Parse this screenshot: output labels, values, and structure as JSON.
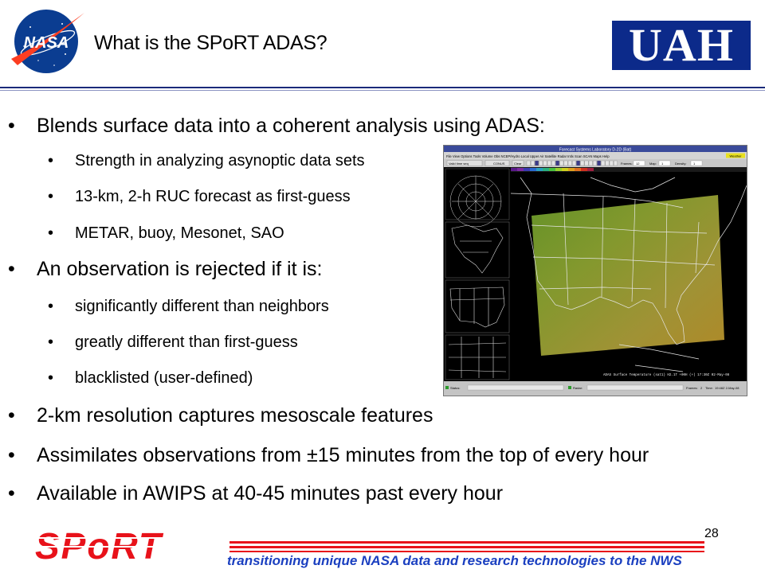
{
  "header": {
    "title": "What is the SPoRT ADAS?",
    "nasa_logo_text": "NASA",
    "uah_logo_text": "UAH"
  },
  "bullets": [
    {
      "level": 1,
      "text": "Blends surface data into a coherent analysis using ADAS:"
    },
    {
      "level": 2,
      "text": "Strength in analyzing asynoptic data sets"
    },
    {
      "level": 2,
      "text": "13-km, 2-h RUC forecast as first-guess"
    },
    {
      "level": 2,
      "text": "METAR, buoy, Mesonet, SAO"
    },
    {
      "level": 1,
      "text": "An observation is rejected if it is:"
    },
    {
      "level": 2,
      "text": "significantly different than neighbors"
    },
    {
      "level": 2,
      "text": "greatly different than first-guess"
    },
    {
      "level": 2,
      "text": "blacklisted (user-defined)"
    },
    {
      "level": 1,
      "text": "2-km resolution captures mesoscale features"
    },
    {
      "level": 1,
      "text": "Assimilates observations from ±15 minutes from the top of every hour"
    },
    {
      "level": 1,
      "text": "Available in AWIPS at 40-45 minutes past every hour"
    }
  ],
  "bullet_symbol": "•",
  "screenshot": {
    "window_title": "Forecast Systems Laboratory D-2D (Bat)",
    "menu": [
      "File",
      "View",
      "Options",
      "Tools",
      "Volume",
      "Obs",
      "NCEP/Hydro",
      "Local",
      "Upper Air",
      "Satellite",
      "Radar",
      "Intlx",
      "Scan",
      "SCAN",
      "Maps",
      "Help"
    ],
    "warn_label": "Weather",
    "toolbar_select": "Valid time seq",
    "toolbar_region": "CONUS",
    "toolbar_clear": "Clear",
    "frames_label": "Frames:",
    "frames_value": "12",
    "map_label": "Map:",
    "map_value": "1",
    "density_label": "Density:",
    "density_value": "1",
    "caption": "ADAS Surface Temperature (sat1)  H2.1T  +00H (+) 17:30Z 02-May-08",
    "status_left": "Status:",
    "status_mid": "Radar:",
    "status_frames": "Frames:",
    "status_frames_value": "2",
    "status_time_label": "Time:",
    "status_time": "19:48Z 2-May-08"
  },
  "footer": {
    "page_number": "28",
    "sport_logo_text": "SPoRT",
    "tagline": "transitioning unique NASA data and research technologies to the NWS"
  },
  "colors": {
    "nasa_blue": "#0b3d91",
    "nasa_red": "#fc3d21",
    "uah_blue": "#0c2a8a",
    "sport_red": "#e8121a",
    "tagline_blue": "#1a3fc0"
  }
}
